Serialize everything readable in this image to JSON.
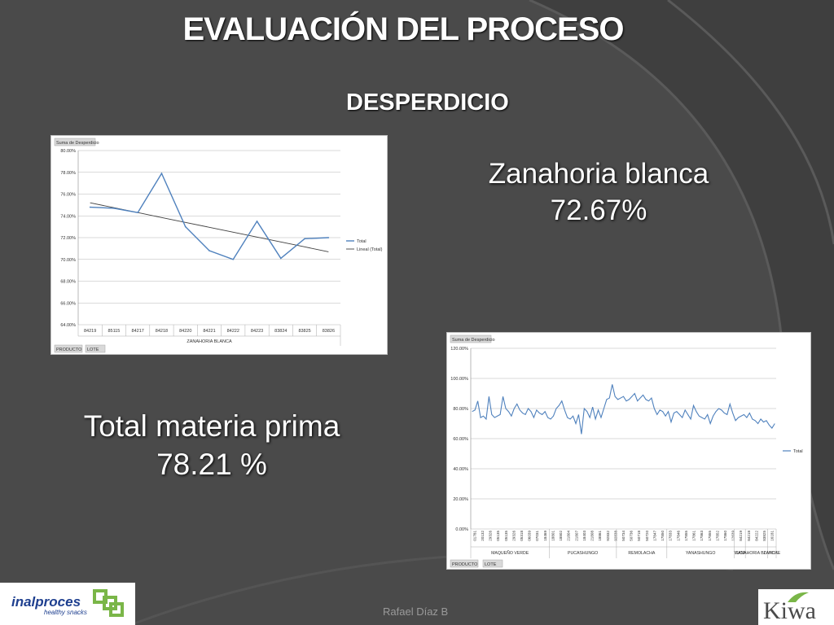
{
  "slide": {
    "title": "EVALUACIÓN DEL PROCESO",
    "subtitle": "DESPERDICIO",
    "zanahoria": {
      "label": "Zanahoria blanca",
      "value": "72.67%"
    },
    "total": {
      "label": "Total materia prima",
      "value": "78.21 %"
    },
    "author": "Rafael Díaz B",
    "logo_left": {
      "name": "inalproces",
      "tagline": "healthy snacks"
    },
    "logo_right": {
      "name": "Kiwa"
    }
  },
  "colors": {
    "background": "#4a4a4a",
    "series": "#4f81bd",
    "trend": "#404040",
    "logo_blue": "#1e3f8f",
    "logo_green": "#7ab648"
  },
  "chart_data": [
    {
      "type": "line",
      "header_button": "Suma de Desperdicio",
      "categories": [
        "84219",
        "85115",
        "84217",
        "84218",
        "84220",
        "84221",
        "84222",
        "84223",
        "83824",
        "83825",
        "83826"
      ],
      "group_label": "ZANAHORIA BLANCA",
      "series": [
        {
          "name": "Total",
          "values": [
            74.8,
            74.7,
            74.3,
            77.9,
            73.0,
            70.8,
            70.0,
            73.5,
            70.1,
            71.9,
            72.0
          ]
        },
        {
          "name": "Lineal (Total)",
          "values": [
            75.2,
            74.75,
            74.3,
            73.85,
            73.4,
            72.95,
            72.5,
            72.05,
            71.6,
            71.15,
            70.7
          ]
        }
      ],
      "ylim": [
        64,
        80
      ],
      "yticks": [
        "64.00%",
        "66.00%",
        "68.00%",
        "70.00%",
        "72.00%",
        "74.00%",
        "76.00%",
        "78.00%",
        "80.00%"
      ],
      "footer_buttons": [
        "PRODUCTO",
        "LOTE"
      ],
      "legend": "right",
      "grid": true
    },
    {
      "type": "line",
      "header_button": "Suma de Desperdicio",
      "series": [
        {
          "name": "Total",
          "values": [
            78,
            79,
            85,
            74,
            75,
            73,
            88,
            76,
            74,
            75,
            76,
            88,
            80,
            78,
            75,
            80,
            83,
            79,
            77,
            76,
            80,
            78,
            74,
            79,
            77,
            76,
            78,
            74,
            73,
            75,
            80,
            82,
            85,
            79,
            74,
            73,
            75,
            70,
            76,
            63,
            80,
            78,
            74,
            81,
            73,
            79,
            74,
            80,
            86,
            87,
            96,
            88,
            86,
            87,
            88,
            85,
            86,
            88,
            90,
            85,
            87,
            89,
            86,
            85,
            87,
            80,
            76,
            79,
            78,
            75,
            78,
            71,
            77,
            78,
            76,
            74,
            79,
            76,
            73,
            82,
            78,
            75,
            74,
            73,
            76,
            70,
            75,
            78,
            80,
            79,
            77,
            76,
            83,
            77,
            72,
            74,
            75,
            76,
            74,
            77,
            73,
            72,
            70,
            73,
            71,
            72,
            69,
            67,
            70
          ]
        }
      ],
      "groups": [
        "MAQUEÑO VERDE",
        "PUCASHUNGO",
        "REMOLACHA",
        "YANASHUNGO",
        "YUCA",
        "ZANAHORIA BLANCA",
        "ZAPOTE"
      ],
      "group_sizes": [
        28,
        24,
        18,
        24,
        4,
        8,
        3
      ],
      "x_ticks": [
        "01781",
        "20132",
        "29326",
        "05135",
        "05135",
        "29326",
        "05318",
        "06039",
        "07031",
        "18469",
        "18801",
        "18802",
        "21804",
        "21807",
        "18403",
        "21808",
        "18861",
        "92832",
        "92838",
        "50734",
        "50736",
        "50718",
        "50720",
        "17847",
        "17850",
        "17833",
        "17846",
        "17855",
        "17861",
        "17863",
        "17855",
        "17852",
        "17860",
        "12639",
        "84219",
        "84218",
        "84222",
        "83825",
        "16181"
      ],
      "ylim": [
        0,
        120
      ],
      "yticks": [
        "0.00%",
        "20.00%",
        "40.00%",
        "60.00%",
        "80.00%",
        "100.00%",
        "120.00%"
      ],
      "footer_buttons": [
        "PRODUCTO",
        "LOTE"
      ],
      "legend": "right",
      "grid": true
    }
  ]
}
